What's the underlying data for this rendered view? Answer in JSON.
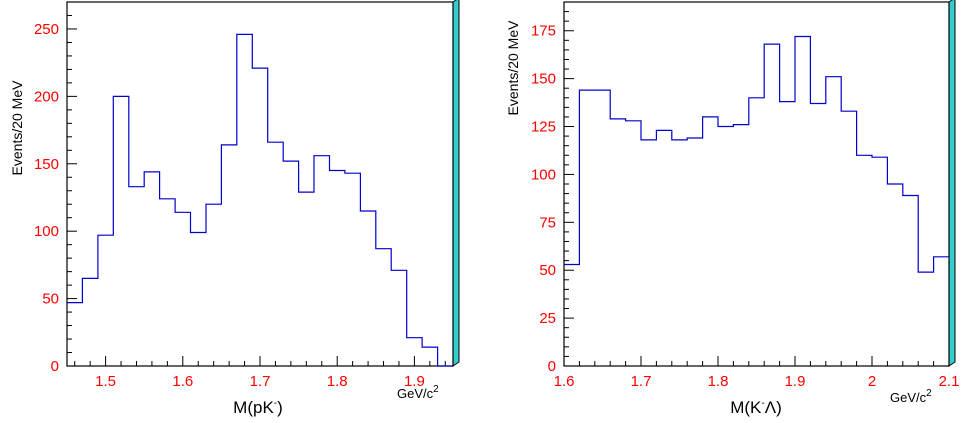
{
  "colors": {
    "histogram": "#0000cc",
    "tick_labels": "#ff0000",
    "frame": "#000000",
    "frame_shadow": "#33cccc"
  },
  "chart_data": [
    {
      "type": "histogram",
      "ylabel": "Events/20 MeV",
      "xlabel": "M(pK⁻)",
      "xlabel_parts": {
        "pre": "M(pK",
        "sup": "-",
        "post": ")"
      },
      "unit": {
        "base": "GeV/c",
        "sup": "2"
      },
      "xlim": [
        1.45,
        1.95
      ],
      "ylim": [
        0,
        270
      ],
      "xticks": [
        1.5,
        1.6,
        1.7,
        1.8,
        1.9
      ],
      "xtick_labels": [
        "1.5",
        "1.6",
        "1.7",
        "1.8",
        "1.9"
      ],
      "yticks": [
        0,
        50,
        100,
        150,
        200,
        250
      ],
      "ytick_labels": [
        "0",
        "50",
        "100",
        "150",
        "200",
        "250"
      ],
      "bin_start": 1.45,
      "bin_width": 0.02,
      "values": [
        47,
        65,
        97,
        200,
        133,
        144,
        124,
        114,
        99,
        120,
        164,
        246,
        221,
        166,
        152,
        129,
        156,
        145,
        143,
        115,
        87,
        71,
        21,
        14,
        0
      ]
    },
    {
      "type": "histogram",
      "ylabel": "Events/20 MeV",
      "xlabel": "M(K⁻Λ̄)",
      "xlabel_parts": {
        "pre": "M(K",
        "sup": "-",
        "post": "Λ)"
      },
      "unit": {
        "base": "GeV/c",
        "sup": "2"
      },
      "xlim": [
        1.6,
        2.1
      ],
      "ylim": [
        0,
        190
      ],
      "xticks": [
        1.6,
        1.7,
        1.8,
        1.9,
        2.0,
        2.1
      ],
      "xtick_labels": [
        "1.6",
        "1.7",
        "1.8",
        "1.9",
        "2",
        "2.1"
      ],
      "yticks": [
        0,
        25,
        50,
        75,
        100,
        125,
        150,
        175
      ],
      "ytick_labels": [
        "0",
        "25",
        "50",
        "75",
        "100",
        "125",
        "150",
        "175"
      ],
      "bin_start": 1.6,
      "bin_width": 0.02,
      "values": [
        53,
        144,
        144,
        129,
        128,
        118,
        123,
        118,
        119,
        130,
        125,
        126,
        140,
        168,
        138,
        172,
        137,
        151,
        133,
        110,
        109,
        95,
        89,
        49,
        57
      ]
    }
  ]
}
